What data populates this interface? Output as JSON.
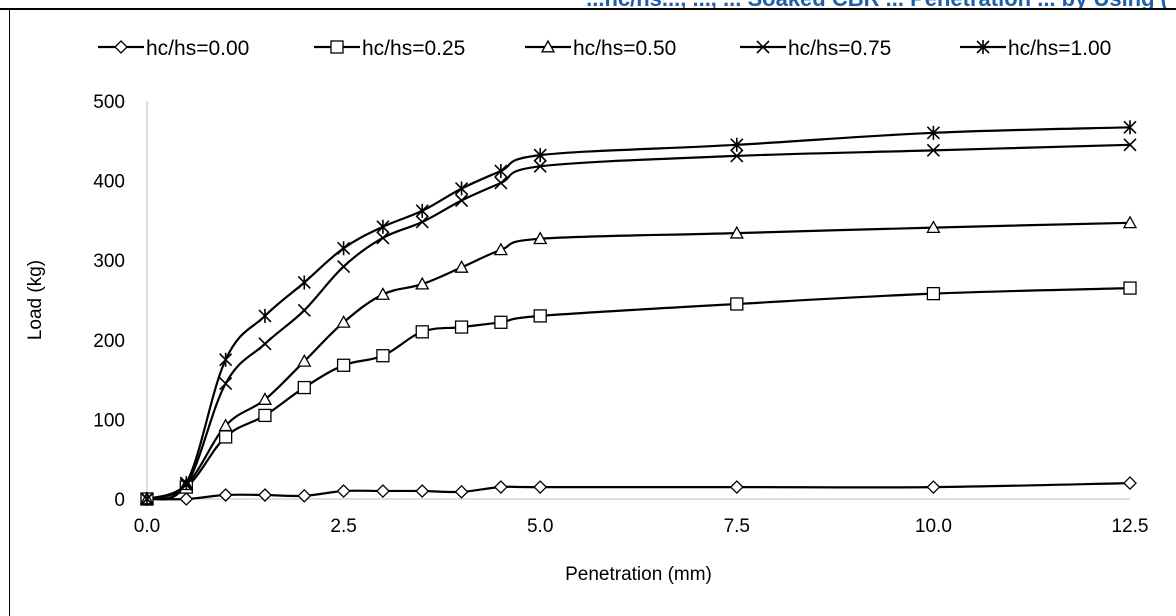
{
  "page_header": {
    "text": "...hc/hs..., ..., ... Soaked CBR ... Penetration ... by Using ("
  },
  "chart_data": {
    "type": "line",
    "title": "",
    "xlabel": "Penetration (mm)",
    "ylabel": "Load (kg)",
    "xlim": [
      0,
      12.5
    ],
    "ylim": [
      0,
      500
    ],
    "xticks": [
      0,
      2.5,
      5,
      7.5,
      10,
      12.5
    ],
    "xtick_labels": [
      "0.0",
      "2.5",
      "5.0",
      "7.5",
      "10.0",
      "12.5"
    ],
    "yticks": [
      0,
      100,
      200,
      300,
      400,
      500
    ],
    "ytick_labels": [
      "0",
      "100",
      "200",
      "300",
      "400",
      "500"
    ],
    "grid": false,
    "legend_position": "top",
    "x": [
      0,
      0.5,
      1.0,
      1.5,
      2.0,
      2.5,
      3.0,
      3.5,
      4.0,
      4.5,
      5.0,
      7.5,
      10.0,
      12.5
    ],
    "series": [
      {
        "name": "hc/hs=0.00",
        "marker": "diamond",
        "values": [
          0,
          0,
          5,
          5,
          4,
          10,
          10,
          10,
          9,
          15,
          15,
          15,
          15,
          20
        ]
      },
      {
        "name": "hc/hs=0.25",
        "marker": "square",
        "values": [
          0,
          15,
          78,
          105,
          140,
          168,
          180,
          210,
          216,
          222,
          230,
          245,
          258,
          265
        ]
      },
      {
        "name": "hc/hs=0.50",
        "marker": "triangle",
        "values": [
          0,
          18,
          92,
          125,
          173,
          222,
          257,
          270,
          291,
          313,
          327,
          334,
          341,
          347
        ]
      },
      {
        "name": "hc/hs=0.75",
        "marker": "x",
        "values": [
          0,
          18,
          145,
          195,
          237,
          292,
          328,
          348,
          375,
          397,
          418,
          431,
          438,
          445
        ]
      },
      {
        "name": "hc/hs=1.00",
        "marker": "asterisk",
        "values": [
          0,
          20,
          175,
          230,
          272,
          315,
          342,
          362,
          390,
          412,
          432,
          445,
          460,
          467
        ]
      }
    ]
  }
}
